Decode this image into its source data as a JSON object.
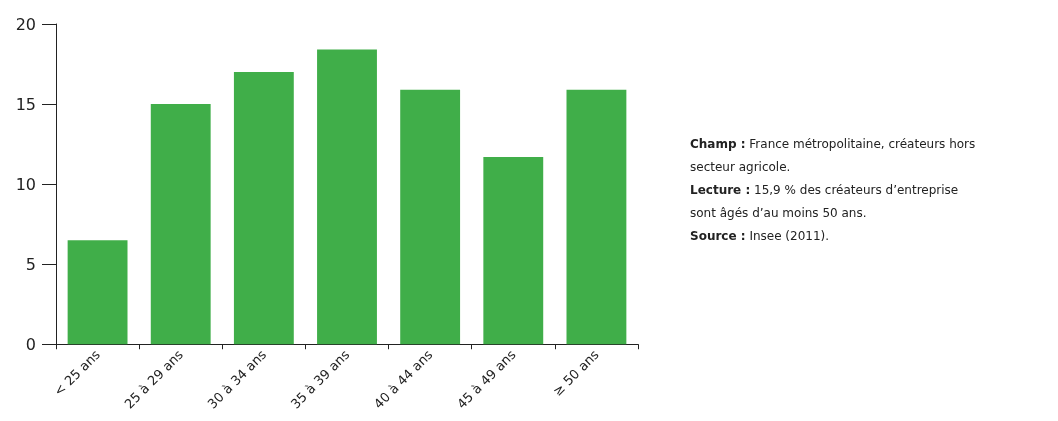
{
  "chart_data": {
    "type": "bar",
    "categories": [
      "< 25 ans",
      "25 à 29 ans",
      "30 à 34 ans",
      "35 à 39 ans",
      "40 à 44 ans",
      "45 à 49 ans",
      "≥ 50 ans"
    ],
    "values": [
      6.5,
      15.0,
      17.0,
      18.4,
      15.9,
      11.7,
      15.9
    ],
    "color": "#40ae49",
    "ylim": [
      0,
      20
    ],
    "yticks": [
      0,
      5,
      10,
      15,
      20
    ],
    "grid": false,
    "annotations": [
      "Champ : France métropolitaine, créateurs hors secteur agricole.",
      "Lecture : 15,9 % des créateurs d’entreprise sont âgés d’au moins 50 ans.",
      "Source : Insee (2011)."
    ]
  }
}
